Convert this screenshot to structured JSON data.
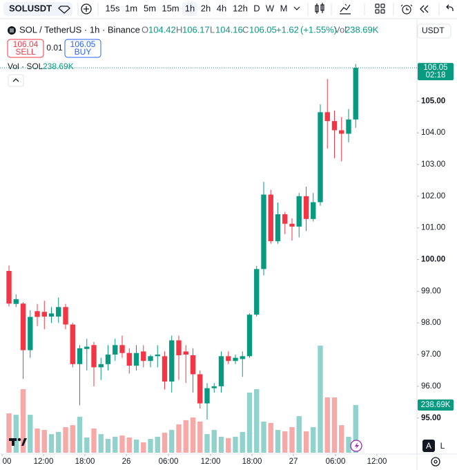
{
  "toolbar": {
    "symbol": "SOLUSDT",
    "intervals": [
      "15s",
      "1m",
      "5m",
      "15m",
      "1h",
      "2h",
      "4h",
      "12h",
      "D",
      "W",
      "M"
    ]
  },
  "legend": {
    "title": "SOL / TetherUS · 1h · Binance",
    "o": "O",
    "h": "H",
    "l": "L",
    "c": "C",
    "change": "+1.62",
    "change_pct": "(+1.55%)",
    "vol_label": "Vol"
  },
  "trade": {
    "sell_price": 106.04,
    "sell": "SELL",
    "spread": 0.01,
    "buy_price": 106.05,
    "buy": "BUY"
  },
  "volume_legend_label": "Vol · SOL",
  "currency": "USDT",
  "axis_buttons": [
    "A",
    "L"
  ],
  "chart_data": {
    "type": "candlestick",
    "open": [
      99.64,
      98.6,
      98.61,
      97.14,
      98.37,
      98.35,
      98.2,
      98.2,
      98.5,
      97.95,
      96.7,
      97.18,
      97.3,
      96.6,
      96.7,
      97.0,
      97.3,
      97.05,
      96.65,
      97.1,
      96.8,
      96.95,
      96.95,
      96.15,
      97.45,
      97.1,
      96.98,
      96.38,
      95.46,
      95.94,
      96.0,
      96.95,
      96.8,
      96.86,
      96.95,
      98.26,
      99.7,
      102.05,
      100.58,
      101.43,
      101.13,
      101.04,
      102.0,
      101.28,
      101.81,
      104.65,
      104.37,
      104.08,
      103.97,
      104.42
    ],
    "high": [
      99.81,
      98.9,
      98.65,
      98.4,
      98.6,
      98.7,
      98.5,
      98.8,
      98.6,
      98.0,
      97.3,
      97.5,
      97.4,
      96.9,
      97.3,
      97.5,
      97.6,
      97.2,
      97.3,
      97.3,
      97.0,
      97.3,
      97.1,
      97.6,
      97.6,
      97.3,
      97.2,
      96.5,
      96.1,
      96.1,
      97.1,
      97.1,
      97.0,
      97.1,
      98.3,
      99.8,
      102.45,
      102.2,
      101.8,
      101.5,
      101.3,
      102.1,
      102.3,
      102.1,
      104.9,
      105.7,
      104.7,
      104.5,
      104.75,
      106.17
    ],
    "low": [
      98.52,
      98.5,
      96.23,
      96.9,
      97.9,
      97.8,
      98.0,
      98.0,
      97.8,
      96.6,
      95.4,
      96.5,
      96.0,
      96.2,
      96.5,
      96.8,
      96.9,
      96.4,
      96.5,
      96.6,
      96.6,
      96.6,
      95.9,
      95.8,
      96.2,
      96.1,
      95.8,
      95.3,
      94.95,
      95.8,
      95.8,
      96.7,
      96.7,
      96.3,
      96.9,
      98.2,
      99.5,
      100.5,
      100.5,
      100.8,
      100.6,
      100.7,
      100.9,
      101.2,
      101.7,
      103.5,
      103.2,
      103.1,
      103.7,
      104.16
    ],
    "close": [
      98.61,
      98.75,
      97.14,
      98.19,
      98.19,
      98.2,
      98.3,
      98.5,
      97.95,
      96.7,
      97.2,
      97.25,
      96.6,
      96.7,
      97.0,
      97.3,
      97.05,
      96.65,
      97.05,
      96.8,
      96.95,
      97.0,
      96.15,
      97.45,
      96.98,
      97.0,
      96.38,
      95.46,
      95.94,
      96.0,
      96.95,
      96.8,
      96.9,
      96.95,
      98.26,
      99.7,
      102.05,
      100.58,
      101.43,
      101.13,
      101.04,
      102.0,
      101.28,
      101.81,
      104.65,
      104.37,
      104.08,
      103.97,
      104.42,
      106.05
    ],
    "volume": [
      197000,
      190000,
      318000,
      190000,
      121000,
      114000,
      93000,
      104000,
      128000,
      138000,
      180000,
      76000,
      121000,
      93000,
      69000,
      80000,
      86000,
      76000,
      66000,
      52000,
      69000,
      80000,
      100000,
      114000,
      142000,
      163000,
      176000,
      156000,
      93000,
      114000,
      80000,
      73000,
      80000,
      104000,
      301000,
      318000,
      156000,
      149000,
      114000,
      107000,
      128000,
      183000,
      107000,
      128000,
      536000,
      277000,
      277000,
      138000,
      80000,
      238690
    ],
    "volume_label": "238.69K",
    "countdown": "02:18",
    "up_color": "#089981",
    "down_color": "#f23645",
    "volume_up_color": "#92d2cc",
    "volume_down_color": "#f7a9a7",
    "xlim": [
      -1.27,
      57.66
    ],
    "xticks": [
      {
        "value": -0.98,
        "label": "00"
      },
      {
        "value": 4.88,
        "label": "12:00"
      },
      {
        "value": 10.73,
        "label": "18:00"
      },
      {
        "value": 16.59,
        "label": "26"
      },
      {
        "value": 22.54,
        "label": "06:00"
      },
      {
        "value": 28.49,
        "label": "12:00"
      },
      {
        "value": 34.34,
        "label": "18:00"
      },
      {
        "value": 40.2,
        "label": "27"
      },
      {
        "value": 46.15,
        "label": "06:00"
      },
      {
        "value": 52.0,
        "label": "12:00"
      }
    ],
    "ylim": [
      93.86,
      107.58
    ],
    "yticks": [
      {
        "value": 95,
        "label": "95.00"
      },
      {
        "value": 96,
        "label": "96.00"
      },
      {
        "value": 97,
        "label": "97.00"
      },
      {
        "value": 98,
        "label": "98.00"
      },
      {
        "value": 99,
        "label": "99.00"
      },
      {
        "value": 100,
        "label": "100.00"
      },
      {
        "value": 101,
        "label": "101.00"
      },
      {
        "value": 102,
        "label": "102.00"
      },
      {
        "value": 103,
        "label": "103.00"
      },
      {
        "value": 104,
        "label": "104.00"
      },
      {
        "value": 105,
        "label": "105.00"
      }
    ],
    "volume_lim": [
      0,
      716000
    ],
    "grid": false
  }
}
